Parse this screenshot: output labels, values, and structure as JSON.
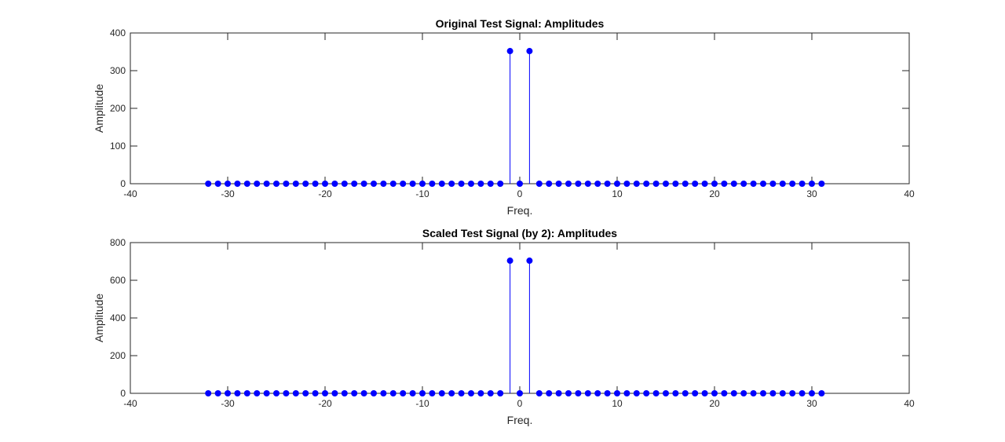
{
  "colors": {
    "series": "#0000ff",
    "axes": "#262626"
  },
  "chart_data": [
    {
      "type": "stem",
      "title": "Original Test Signal: Amplitudes",
      "xlabel": "Freq.",
      "ylabel": "Amplitude",
      "xlim": [
        -40,
        40
      ],
      "ylim": [
        0,
        400
      ],
      "xticks": [
        -40,
        -30,
        -20,
        -10,
        0,
        10,
        20,
        30,
        40
      ],
      "yticks": [
        0,
        100,
        200,
        300,
        400
      ],
      "grid": false,
      "x": [
        -32,
        -31,
        -30,
        -29,
        -28,
        -27,
        -26,
        -25,
        -24,
        -23,
        -22,
        -21,
        -20,
        -19,
        -18,
        -17,
        -16,
        -15,
        -14,
        -13,
        -12,
        -11,
        -10,
        -9,
        -8,
        -7,
        -6,
        -5,
        -4,
        -3,
        -2,
        -1,
        0,
        1,
        2,
        3,
        4,
        5,
        6,
        7,
        8,
        9,
        10,
        11,
        12,
        13,
        14,
        15,
        16,
        17,
        18,
        19,
        20,
        21,
        22,
        23,
        24,
        25,
        26,
        27,
        28,
        29,
        30,
        31
      ],
      "y": [
        0,
        0,
        0,
        0,
        0,
        0,
        0,
        0,
        0,
        0,
        0,
        0,
        0,
        0,
        0,
        0,
        0,
        0,
        0,
        0,
        0,
        0,
        0,
        0,
        0,
        0,
        0,
        0,
        0,
        0,
        0,
        352,
        0,
        352,
        0,
        0,
        0,
        0,
        0,
        0,
        0,
        0,
        0,
        0,
        0,
        0,
        0,
        0,
        0,
        0,
        0,
        0,
        0,
        0,
        0,
        0,
        0,
        0,
        0,
        0,
        0,
        0,
        0,
        0
      ]
    },
    {
      "type": "stem",
      "title": "Scaled Test Signal (by 2): Amplitudes",
      "xlabel": "Freq.",
      "ylabel": "Amplitude",
      "xlim": [
        -40,
        40
      ],
      "ylim": [
        0,
        800
      ],
      "xticks": [
        -40,
        -30,
        -20,
        -10,
        0,
        10,
        20,
        30,
        40
      ],
      "yticks": [
        0,
        200,
        400,
        600,
        800
      ],
      "grid": false,
      "x": [
        -32,
        -31,
        -30,
        -29,
        -28,
        -27,
        -26,
        -25,
        -24,
        -23,
        -22,
        -21,
        -20,
        -19,
        -18,
        -17,
        -16,
        -15,
        -14,
        -13,
        -12,
        -11,
        -10,
        -9,
        -8,
        -7,
        -6,
        -5,
        -4,
        -3,
        -2,
        -1,
        0,
        1,
        2,
        3,
        4,
        5,
        6,
        7,
        8,
        9,
        10,
        11,
        12,
        13,
        14,
        15,
        16,
        17,
        18,
        19,
        20,
        21,
        22,
        23,
        24,
        25,
        26,
        27,
        28,
        29,
        30,
        31
      ],
      "y": [
        0,
        0,
        0,
        0,
        0,
        0,
        0,
        0,
        0,
        0,
        0,
        0,
        0,
        0,
        0,
        0,
        0,
        0,
        0,
        0,
        0,
        0,
        0,
        0,
        0,
        0,
        0,
        0,
        0,
        0,
        0,
        704,
        0,
        704,
        0,
        0,
        0,
        0,
        0,
        0,
        0,
        0,
        0,
        0,
        0,
        0,
        0,
        0,
        0,
        0,
        0,
        0,
        0,
        0,
        0,
        0,
        0,
        0,
        0,
        0,
        0,
        0,
        0,
        0
      ]
    }
  ]
}
